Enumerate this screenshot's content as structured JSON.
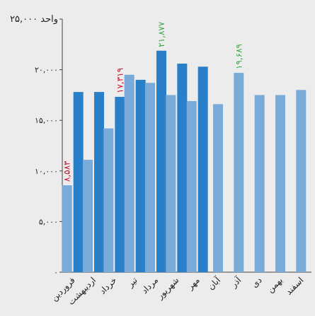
{
  "chart_data": {
    "type": "bar",
    "title": "",
    "xlabel": "",
    "ylabel": "",
    "y_unit_label": "واحد",
    "ylim": [
      0,
      25000
    ],
    "y_ticks": [
      0,
      5000,
      10000,
      15000,
      20000,
      25000
    ],
    "y_tick_labels": [
      "۰",
      "۵,۰۰۰",
      "۱۰,۰۰۰",
      "۱۵,۰۰۰",
      "۲۰,۰۰۰",
      "۲۵,۰۰۰"
    ],
    "grid": false,
    "legend": "none",
    "categories": [
      "فروردین",
      "اردیبهشت",
      "خرداد",
      "تیر",
      "مرداد",
      "شهریور",
      "مهر",
      "آبان",
      "آذر",
      "دی",
      "بهمن",
      "اسفند"
    ],
    "series": [
      {
        "color": "#7aaad8",
        "values": [
          8583,
          11100,
          14200,
          19500,
          18700,
          17500,
          16900,
          16600,
          19689,
          17500,
          17500,
          18000
        ]
      },
      {
        "color": "#2a7fc9",
        "values": [
          17800,
          17800,
          17319,
          19000,
          21877,
          20600,
          20300,
          null,
          null,
          null,
          null,
          null
        ]
      }
    ],
    "annotations": [
      {
        "series": 0,
        "category": 0,
        "text": "۸,۵۸۳",
        "color": "#c8102e"
      },
      {
        "series": 1,
        "category": 2,
        "text": "۱۷,۳۱۹",
        "color": "#c8102e"
      },
      {
        "series": 1,
        "category": 4,
        "text": "۲۱,۸۷۷",
        "color": "#3aa845"
      },
      {
        "series": 0,
        "category": 8,
        "text": "۱۹,۶۸۹",
        "color": "#3aa845"
      }
    ]
  }
}
